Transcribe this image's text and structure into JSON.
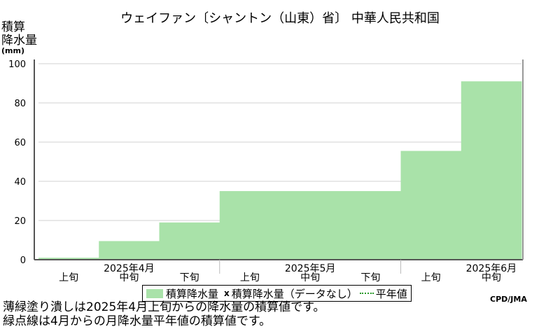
{
  "title": "ウェイファン〔シャントン（山東）省〕 中華人民共和国",
  "ylabel": [
    "積算",
    "降水量"
  ],
  "yunit": "(mm)",
  "legend": {
    "series": "積算降水量",
    "missing_mark": "x",
    "missing": "積算降水量（データなし）",
    "normal": "平年値"
  },
  "credit": "CPD/JMA",
  "notes": [
    "薄緑塗り潰しは2025年4月上旬からの降水量の積算値です。",
    "緑点線は4月からの月降水量平年値の積算値です。"
  ],
  "colors": {
    "fill": "#a9e2a9",
    "grid": "#d0d0d0",
    "axis": "#555555",
    "normal_line": "#2a9a2a"
  },
  "chart_data": {
    "type": "area",
    "title": "ウェイファン〔シャントン（山東）省〕 中華人民共和国",
    "ylabel": "積算降水量 (mm)",
    "ylim": [
      0,
      100
    ],
    "yticks": [
      0,
      20,
      40,
      60,
      80,
      100
    ],
    "grid": true,
    "legend_position": "bottom",
    "categories": [
      "上旬",
      "中旬",
      "下旬",
      "上旬",
      "中旬",
      "下旬",
      "上旬",
      "中旬"
    ],
    "month_labels": [
      {
        "label": "2025年4月",
        "index": 1
      },
      {
        "label": "2025年5月",
        "index": 4
      },
      {
        "label": "2025年6月",
        "index": 7
      }
    ],
    "month_boundaries": [
      3,
      6
    ],
    "series": [
      {
        "name": "積算降水量",
        "values": [
          1,
          9.5,
          19,
          35,
          35,
          35,
          55.5,
          91
        ]
      }
    ]
  }
}
